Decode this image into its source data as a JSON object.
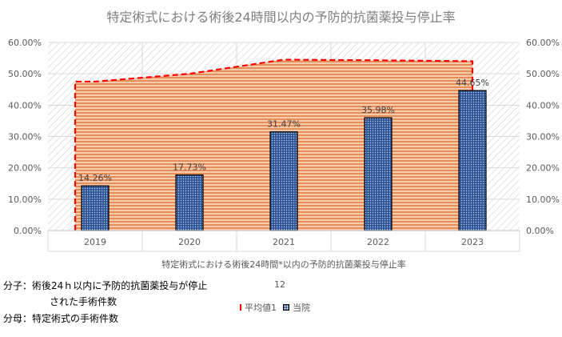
{
  "chart_data": {
    "type": "bar",
    "title": "特定術式における術後24時間以内の予防的抗菌薬投与停止率",
    "categories": [
      "2019",
      "2020",
      "2021",
      "2022",
      "2023"
    ],
    "series": [
      {
        "name": "当院",
        "type": "bar",
        "values": [
          14.26,
          17.73,
          31.47,
          35.98,
          44.65
        ],
        "data_labels": [
          "14.26%",
          "17.73%",
          "31.47%",
          "35.98%",
          "44.65%"
        ]
      },
      {
        "name": "平均値1",
        "type": "area",
        "values": [
          47.5,
          50.0,
          54.5,
          54.3,
          54.0
        ]
      }
    ],
    "xlabel": "特定術式における術後24時間*以内の予防的抗菌薬投与停止率",
    "xlabel_line2": "12",
    "ylim": [
      0,
      60
    ],
    "yticks": [
      "0.00%",
      "10.00%",
      "20.00%",
      "30.00%",
      "40.00%",
      "50.00%",
      "60.00%"
    ],
    "secondary_axis": true,
    "grid": true,
    "legend_position": "bottom",
    "colors": {
      "bar": "#2f5597",
      "area_fill": "#f4b183",
      "area_line": "#ff0000",
      "plot_bg_hatch": "#d9d9d9"
    }
  },
  "notes": {
    "numerator_line1": "分子：術後24ｈ以内に予防的抗菌薬投与が停止",
    "numerator_line2": "された手術件数",
    "denominator": "分母：特定術式の手術件数"
  }
}
